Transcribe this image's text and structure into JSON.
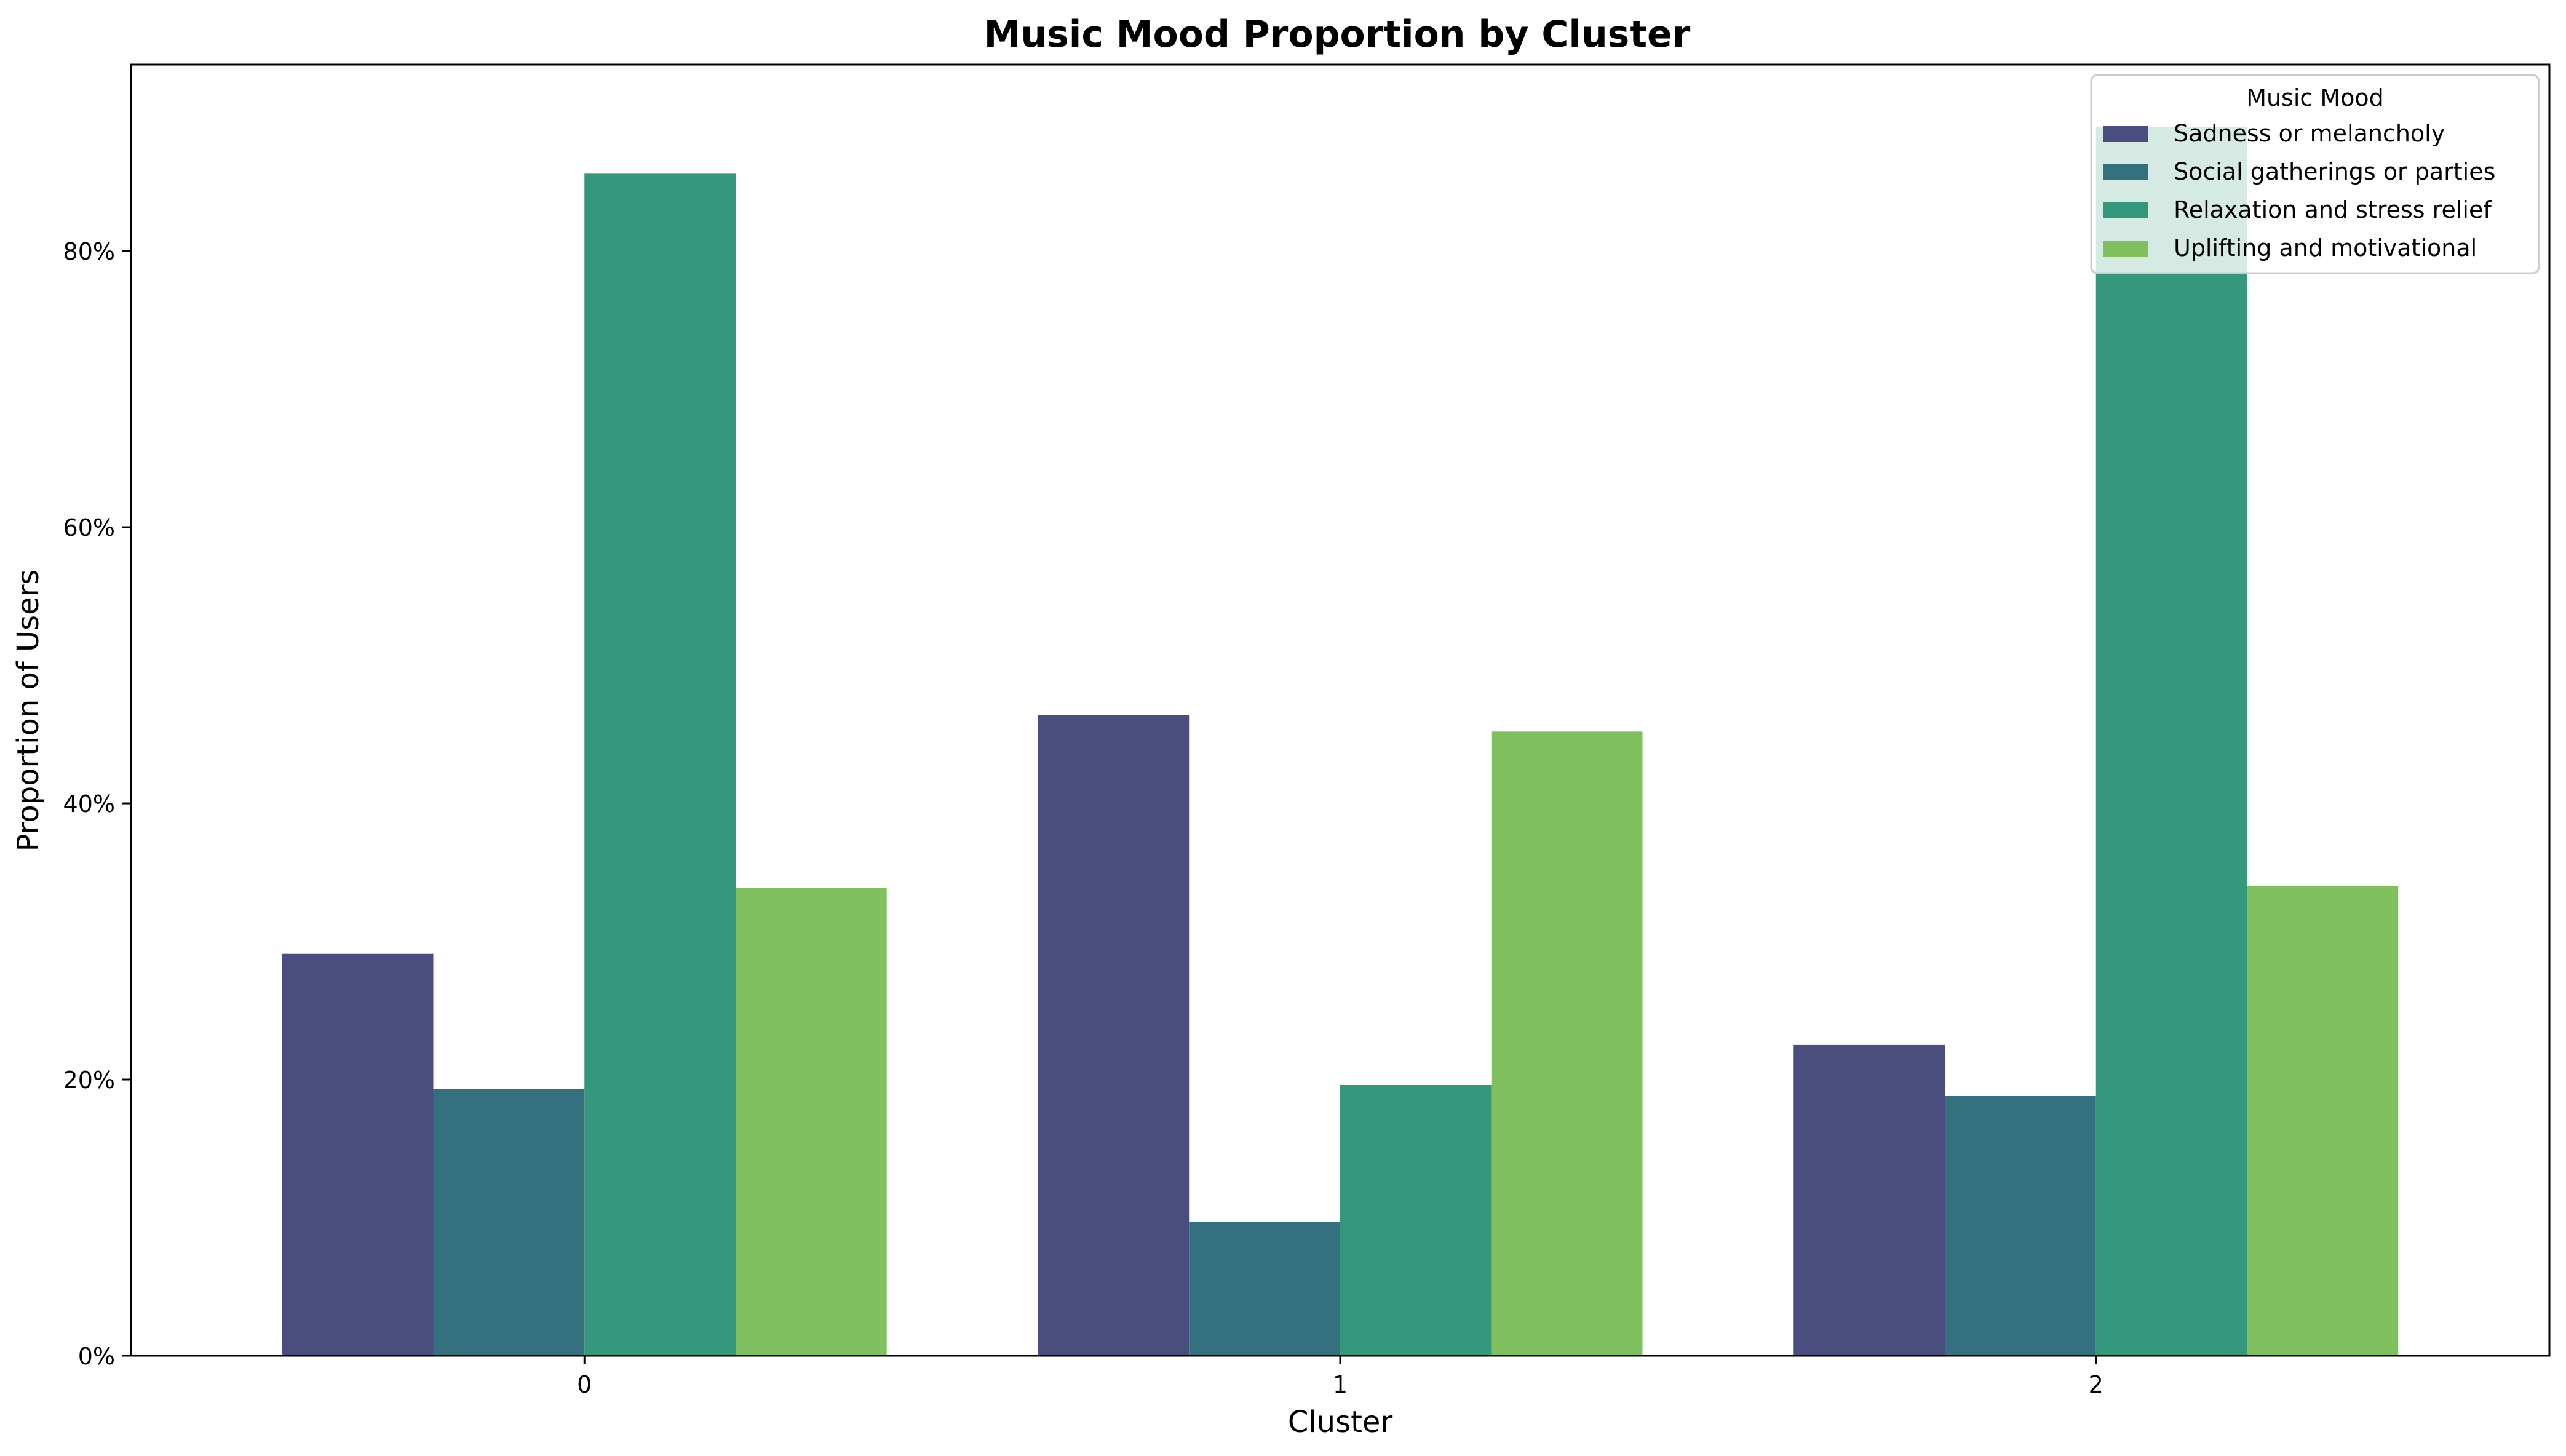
{
  "chart_data": {
    "type": "bar",
    "title": "Music Mood Proportion by Cluster",
    "xlabel": "Cluster",
    "ylabel": "Proportion of Users",
    "categories": [
      "0",
      "1",
      "2"
    ],
    "series": [
      {
        "name": "Sadness or melancholy",
        "color": "#4a4e7e",
        "values": [
          0.291,
          0.464,
          0.225
        ]
      },
      {
        "name": "Social gatherings or parties",
        "color": "#35707f",
        "values": [
          0.193,
          0.097,
          0.188
        ]
      },
      {
        "name": "Relaxation and stress relief",
        "color": "#35977b",
        "values": [
          0.856,
          0.196,
          0.89
        ]
      },
      {
        "name": "Uplifting and motivational",
        "color": "#80c05f",
        "values": [
          0.339,
          0.452,
          0.34
        ]
      }
    ],
    "ylim": [
      0,
      0.935
    ],
    "yticks": [
      0,
      0.2,
      0.4,
      0.6,
      0.8
    ],
    "ytick_labels": [
      "0%",
      "20%",
      "40%",
      "60%",
      "80%"
    ],
    "grid": false,
    "legend": {
      "title": "Music Mood",
      "placement": "top-right"
    }
  }
}
